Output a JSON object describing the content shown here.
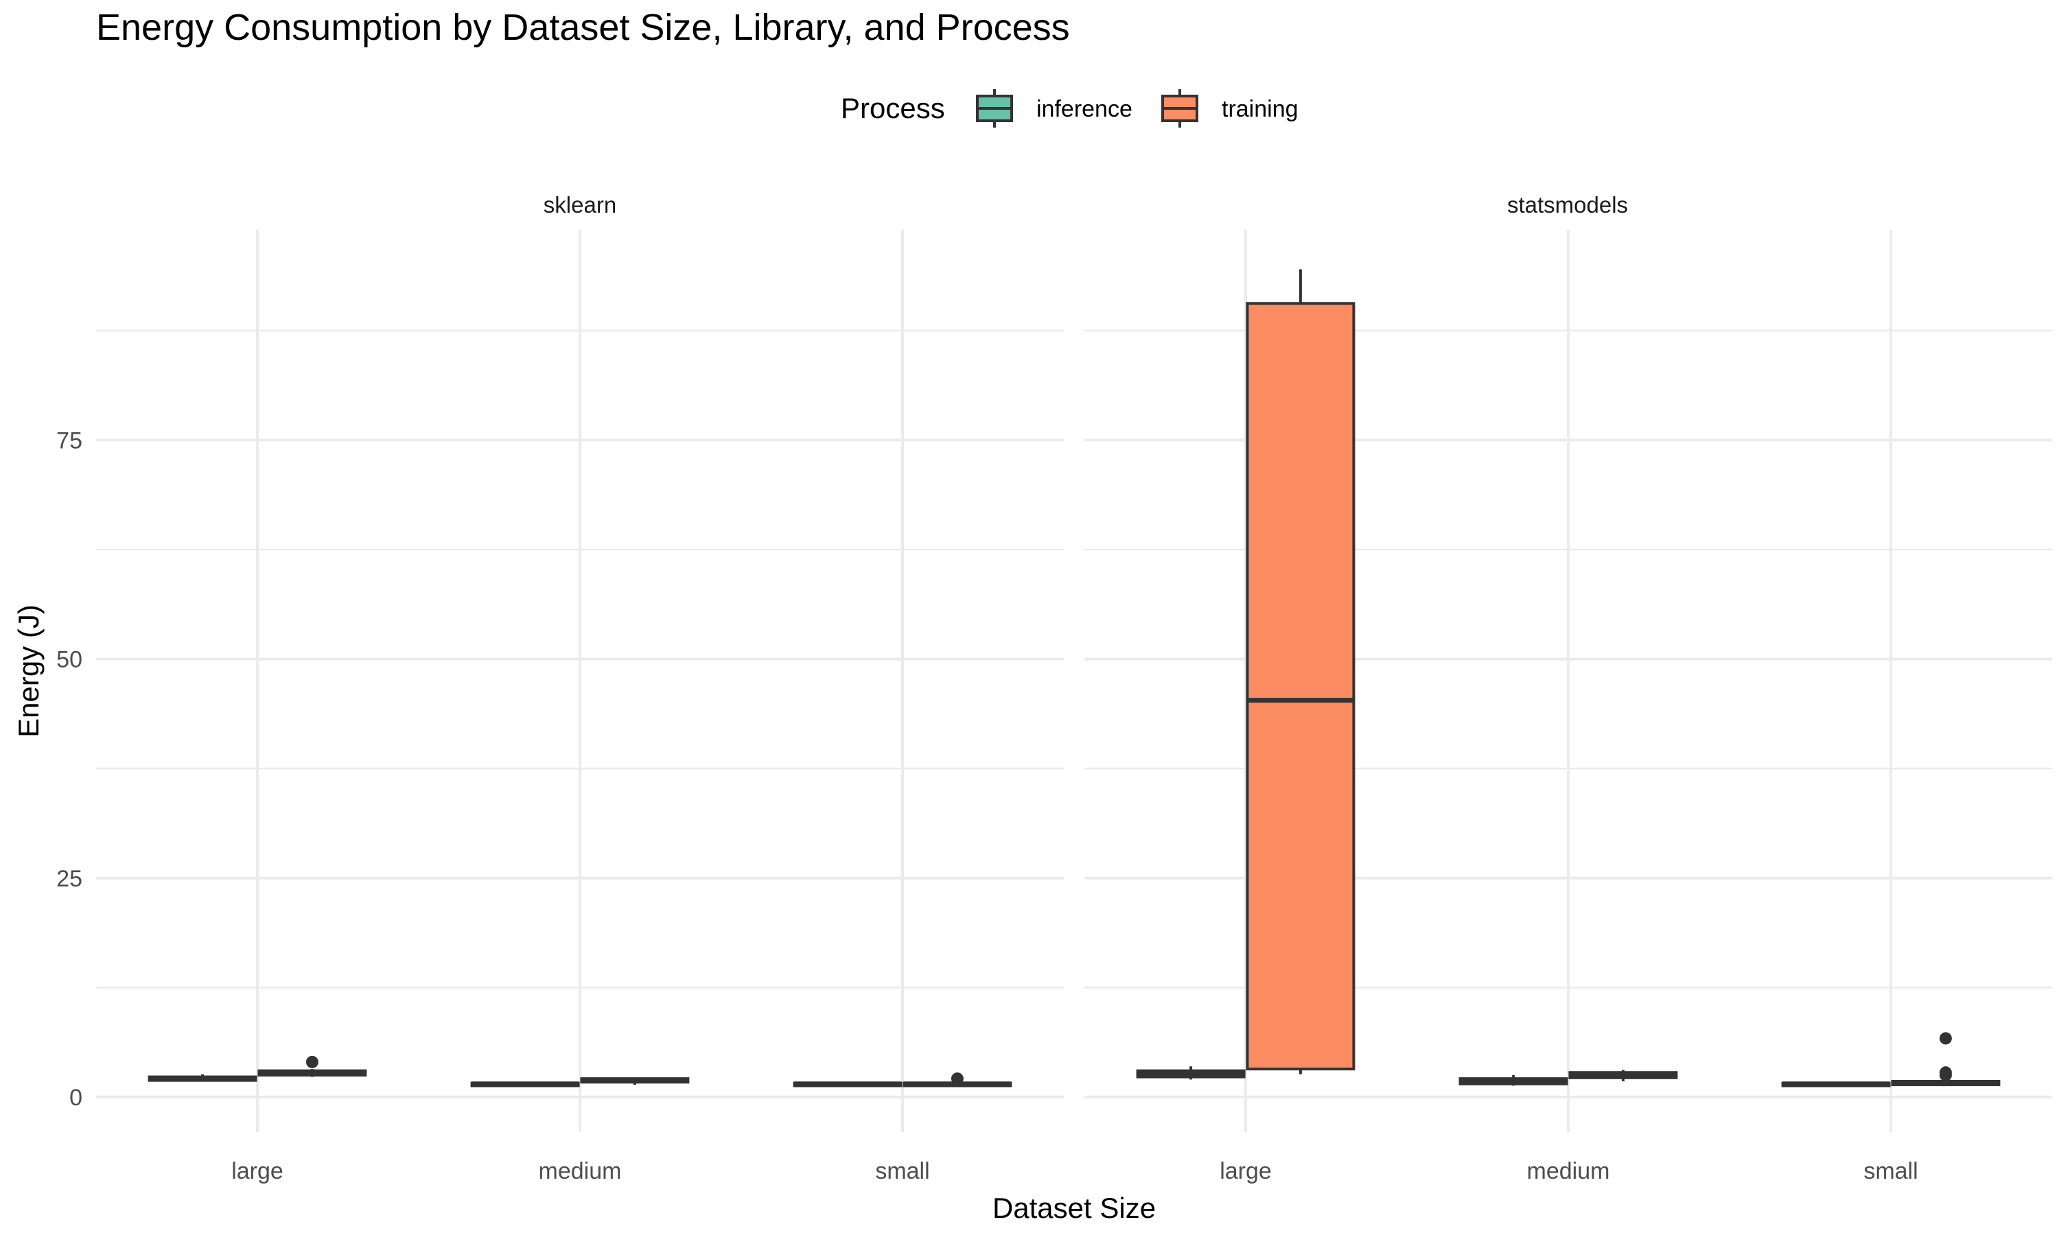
{
  "chart_data": {
    "type": "boxplot",
    "title": "Energy Consumption by Dataset Size, Library, and Process",
    "xlabel": "Dataset Size",
    "ylabel": "Energy (J)",
    "ylim": [
      -4,
      99
    ],
    "yticks": [
      0,
      25,
      50,
      75
    ],
    "categories": [
      "large",
      "medium",
      "small"
    ],
    "legend": {
      "title": "Process",
      "position": "top",
      "entries": [
        {
          "name": "inference",
          "color": "#66c2a5"
        },
        {
          "name": "training",
          "color": "#fc8d62"
        }
      ]
    },
    "grid": true,
    "facets": [
      {
        "label": "sklearn",
        "boxes": [
          {
            "category": "large",
            "process": "inference",
            "min": 1.8,
            "q1": 1.9,
            "median": 2.1,
            "q3": 2.3,
            "max": 2.6,
            "outliers": []
          },
          {
            "category": "large",
            "process": "training",
            "min": 2.3,
            "q1": 2.5,
            "median": 2.8,
            "q3": 3.0,
            "max": 3.2,
            "outliers": [
              4.0
            ]
          },
          {
            "category": "medium",
            "process": "inference",
            "min": 1.2,
            "q1": 1.3,
            "median": 1.5,
            "q3": 1.6,
            "max": 1.7,
            "outliers": []
          },
          {
            "category": "medium",
            "process": "training",
            "min": 1.4,
            "q1": 1.7,
            "median": 1.9,
            "q3": 2.1,
            "max": 2.2,
            "outliers": []
          },
          {
            "category": "small",
            "process": "inference",
            "min": 1.3,
            "q1": 1.4,
            "median": 1.5,
            "q3": 1.6,
            "max": 1.7,
            "outliers": []
          },
          {
            "category": "small",
            "process": "training",
            "min": 1.3,
            "q1": 1.4,
            "median": 1.5,
            "q3": 1.6,
            "max": 1.8,
            "outliers": [
              2.1
            ]
          }
        ]
      },
      {
        "label": "statsmodels",
        "boxes": [
          {
            "category": "large",
            "process": "inference",
            "min": 2.0,
            "q1": 2.3,
            "median": 2.7,
            "q3": 3.0,
            "max": 3.5,
            "outliers": []
          },
          {
            "category": "large",
            "process": "training",
            "min": 2.6,
            "q1": 3.2,
            "median": 45.3,
            "q3": 90.6,
            "max": 94.5,
            "outliers": []
          },
          {
            "category": "medium",
            "process": "inference",
            "min": 1.3,
            "q1": 1.5,
            "median": 1.8,
            "q3": 2.1,
            "max": 2.5,
            "outliers": []
          },
          {
            "category": "medium",
            "process": "training",
            "min": 1.8,
            "q1": 2.2,
            "median": 2.5,
            "q3": 2.8,
            "max": 3.1,
            "outliers": []
          },
          {
            "category": "small",
            "process": "inference",
            "min": 1.3,
            "q1": 1.4,
            "median": 1.5,
            "q3": 1.6,
            "max": 1.7,
            "outliers": []
          },
          {
            "category": "small",
            "process": "training",
            "min": 1.3,
            "q1": 1.4,
            "median": 1.6,
            "q3": 1.8,
            "max": 2.0,
            "outliers": [
              2.5,
              2.8,
              6.7
            ]
          }
        ]
      }
    ]
  }
}
